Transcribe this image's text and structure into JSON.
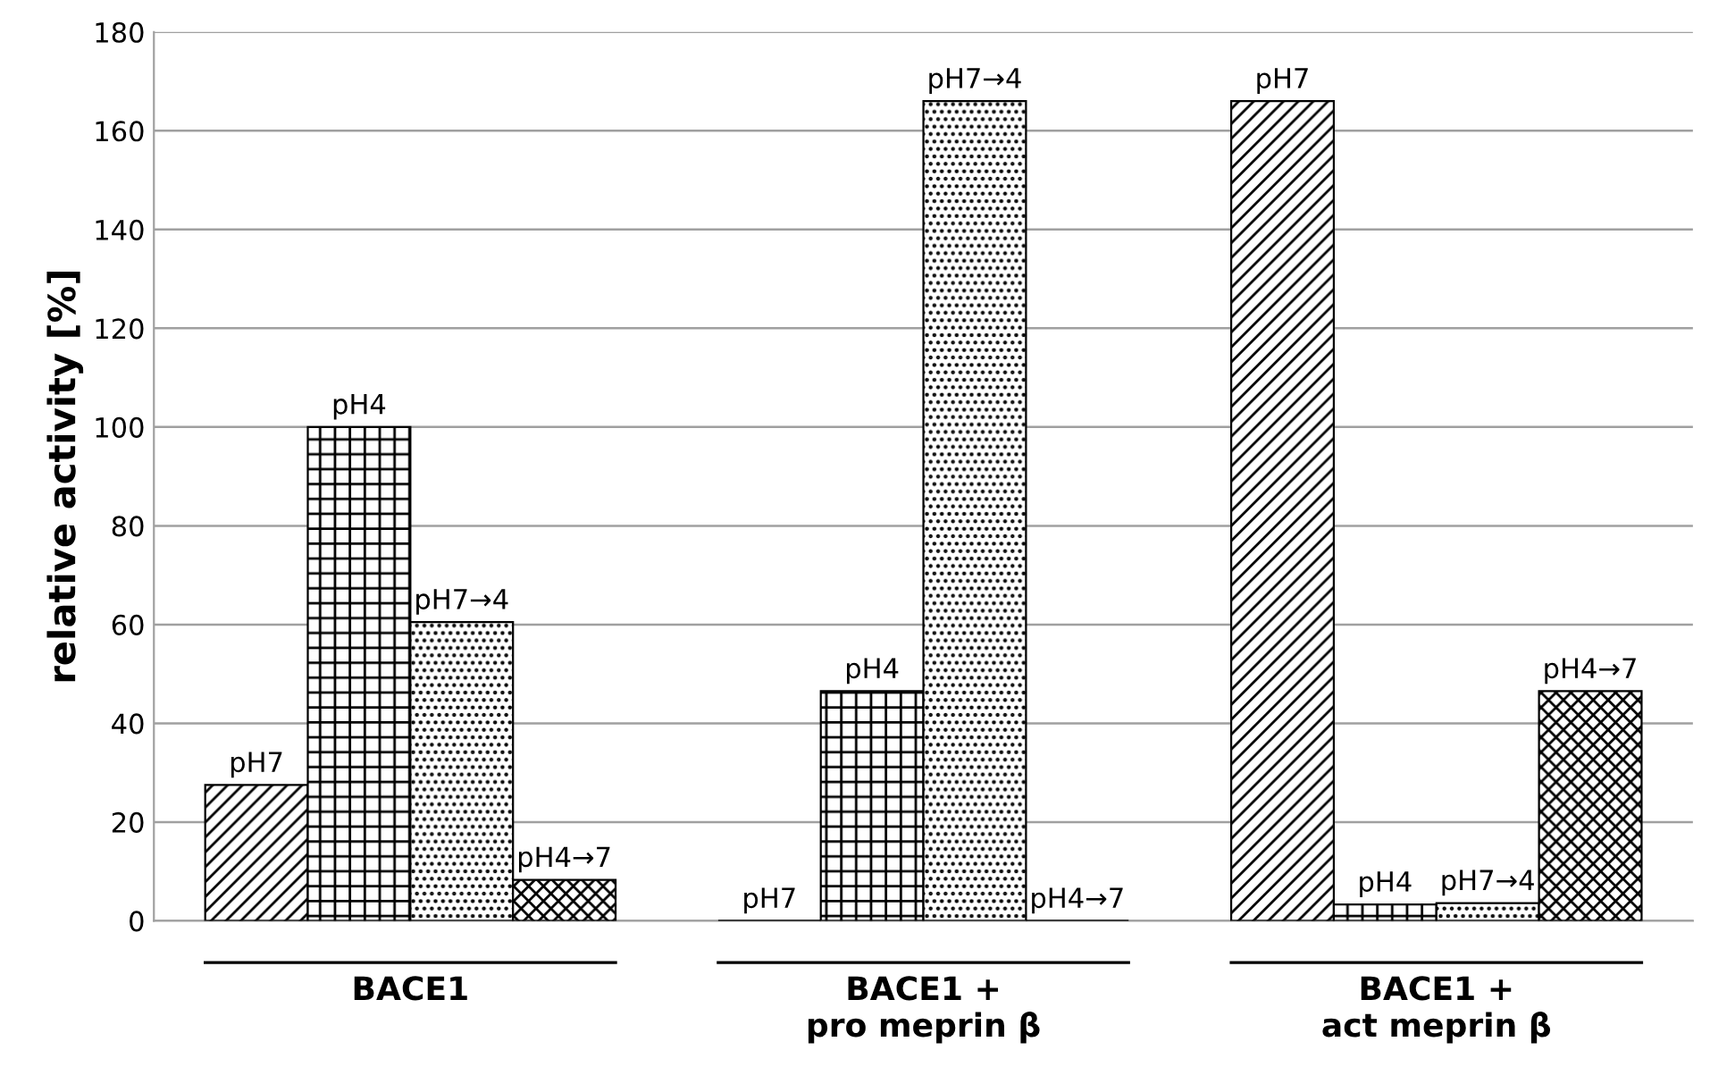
{
  "chart_data": {
    "type": "bar",
    "ylabel": "relative activity [%]",
    "categories": [
      "BACE1",
      "BACE1 +\npro meprin β",
      "BACE1 +\nact meprin β"
    ],
    "series": [
      {
        "name": "pH7",
        "color": "#000000",
        "values": [
          27.5,
          0,
          166
        ]
      },
      {
        "name": "pH4",
        "color": "#000000",
        "values": [
          100,
          46.5,
          3.3
        ]
      },
      {
        "name": "pH7→4",
        "color": "#000000",
        "values": [
          60.5,
          166,
          3.6
        ]
      },
      {
        "name": "pH4→7",
        "color": "#000000",
        "values": [
          8.3,
          0,
          46.5
        ]
      }
    ],
    "ylim": [
      0,
      180
    ],
    "yticks": [
      0,
      20,
      40,
      60,
      80,
      100,
      120,
      140,
      160,
      180
    ],
    "grid": "y",
    "legend": false
  }
}
